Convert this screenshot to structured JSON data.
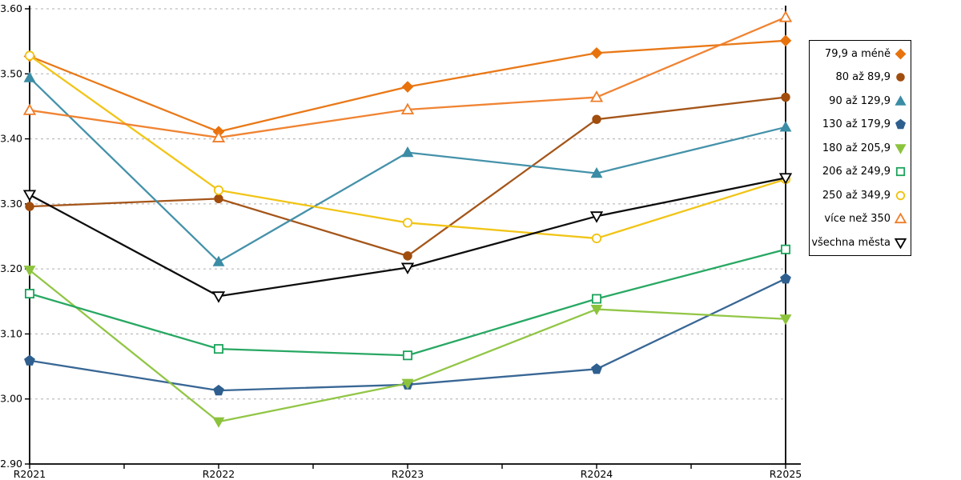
{
  "chart_data": {
    "type": "line",
    "title": "",
    "xlabel": "",
    "ylabel": "",
    "categories": [
      "R2021",
      "R2022",
      "R2023",
      "R2024",
      "R2025"
    ],
    "ylim": [
      2.9,
      3.6
    ],
    "y_ticks": [
      "2.90",
      "3.00",
      "3.10",
      "3.20",
      "3.30",
      "3.40",
      "3.50",
      "3.60"
    ],
    "grid": "horizontal-dashed",
    "grid_color": "#ADADAD",
    "axis_color": "#000000",
    "legend_position": "right",
    "series": [
      {
        "name": "79,9 a méně",
        "marker": "diamond",
        "style": "filled",
        "color": "#E8720C",
        "values": [
          3.527,
          3.411,
          3.48,
          3.532,
          3.551
        ]
      },
      {
        "name": "80 až 89,9",
        "marker": "circle",
        "style": "filled",
        "color": "#A04D0E",
        "values": [
          3.296,
          3.308,
          3.22,
          3.43,
          3.464
        ]
      },
      {
        "name": "90 až 129,9",
        "marker": "triangle-up",
        "style": "filled",
        "color": "#3B8CA5",
        "values": [
          3.494,
          3.211,
          3.379,
          3.347,
          3.418
        ]
      },
      {
        "name": "130 až 179,9",
        "marker": "pentagon",
        "style": "filled",
        "color": "#2E5F8F",
        "values": [
          3.059,
          3.013,
          3.022,
          3.046,
          3.185
        ]
      },
      {
        "name": "180 až 205,9",
        "marker": "triangle-down",
        "style": "filled",
        "color": "#8CC33C",
        "values": [
          3.198,
          2.965,
          3.024,
          3.138,
          3.123
        ]
      },
      {
        "name": "206 až 249,9",
        "marker": "square",
        "style": "open",
        "color": "#1CA35B",
        "values": [
          3.162,
          3.077,
          3.067,
          3.154,
          3.23
        ]
      },
      {
        "name": "250 až 349,9",
        "marker": "circle",
        "style": "open",
        "color": "#F0C20C",
        "values": [
          3.528,
          3.321,
          3.271,
          3.247,
          3.338
        ]
      },
      {
        "name": "více než 350",
        "marker": "triangle-up",
        "style": "open",
        "color": "#EF7D28",
        "values": [
          3.444,
          3.402,
          3.445,
          3.464,
          3.587
        ]
      },
      {
        "name": "všechna města",
        "marker": "triangle-down",
        "style": "open",
        "color": "#000000",
        "values": [
          3.314,
          3.158,
          3.202,
          3.281,
          3.34
        ]
      }
    ]
  }
}
